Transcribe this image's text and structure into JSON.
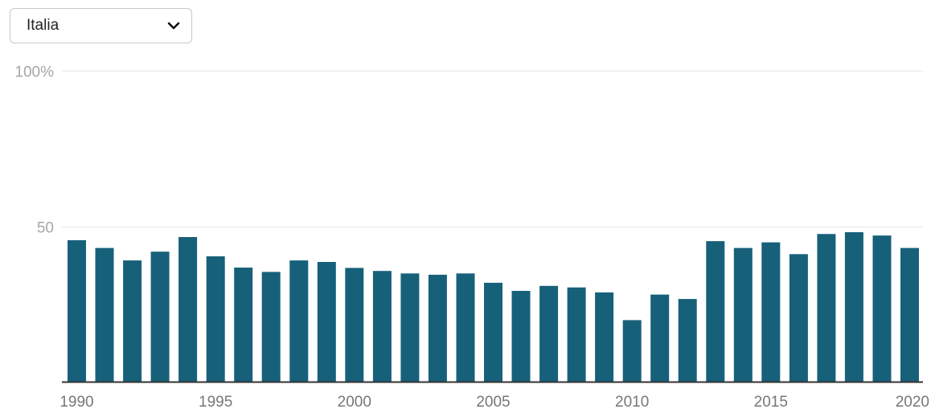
{
  "selector": {
    "selected": "Italia",
    "icon": "chevron-down-icon"
  },
  "chart_data": {
    "type": "bar",
    "x": [
      1990,
      1991,
      1992,
      1993,
      1994,
      1995,
      1996,
      1997,
      1998,
      1999,
      2000,
      2001,
      2002,
      2003,
      2004,
      2005,
      2006,
      2007,
      2008,
      2009,
      2010,
      2011,
      2012,
      2013,
      2014,
      2015,
      2016,
      2017,
      2018,
      2019,
      2020
    ],
    "values": [
      45.5,
      43,
      39,
      41.8,
      46.5,
      40.3,
      36.7,
      35.3,
      39,
      38.5,
      36.6,
      35.6,
      34.8,
      34.4,
      34.8,
      31.8,
      29.2,
      30.8,
      30.3,
      28.7,
      19.8,
      28,
      26.6,
      45.2,
      43,
      44.8,
      41,
      47.5,
      48.1,
      47,
      43
    ],
    "x_tick_labels": [
      "1990",
      "1995",
      "2000",
      "2005",
      "2010",
      "2015",
      "2020"
    ],
    "y_tick_labels": [
      "100%",
      "50"
    ],
    "y_ticks": [
      100,
      50
    ],
    "ylim": [
      0,
      100
    ],
    "grid": true,
    "colors": {
      "bar": "#17607a",
      "grid": "#e6e6e6",
      "axis": "#333333",
      "tick_text": "#a6a6a6",
      "x_tick_text": "#777777"
    }
  }
}
